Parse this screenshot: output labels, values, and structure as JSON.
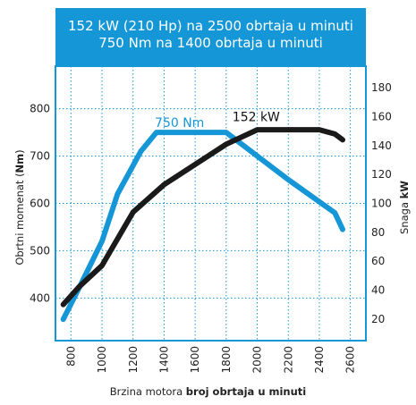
{
  "chart_data": {
    "type": "line",
    "title_line1": "152 kW (210 Hp) na 2500 obrtaja u minuti",
    "title_line2": "750 Nm na 1400 obrtaja u minuti",
    "xlabel_regular": "Brzina motora ",
    "xlabel_bold": "broj obrtaja u minuti",
    "ylabel_left_regular": "Obrtni momenat (",
    "ylabel_left_bold": "Nm",
    "ylabel_left_close": ")",
    "ylabel_right_regular": "Snaga ",
    "ylabel_right_bold": "kW",
    "x_ticks": [
      "800",
      "1000",
      "1200",
      "1400",
      "1600",
      "1800",
      "2000",
      "2200",
      "2400",
      "2600"
    ],
    "y_left_ticks": [
      "400",
      "500",
      "600",
      "700",
      "800"
    ],
    "y_right_ticks": [
      "20",
      "40",
      "60",
      "80",
      "100",
      "120",
      "140",
      "160",
      "180"
    ],
    "xlim": [
      700,
      2700
    ],
    "ylim_left": [
      310,
      890
    ],
    "ylim_right": [
      5,
      195
    ],
    "grid": true,
    "series": [
      {
        "name": "750 Nm",
        "axis": "left",
        "color": "#1596d6",
        "x": [
          750,
          850,
          1000,
          1100,
          1250,
          1350,
          1400,
          1800,
          2200,
          2500,
          2550
        ],
        "y": [
          355,
          420,
          520,
          620,
          710,
          750,
          750,
          750,
          650,
          580,
          545
        ]
      },
      {
        "name": "152 kW",
        "axis": "right",
        "color": "#1a1a1a",
        "x": [
          750,
          850,
          1000,
          1200,
          1400,
          1800,
          2000,
          2200,
          2400,
          2500,
          2550
        ],
        "y": [
          30,
          42,
          57,
          94,
          113,
          141,
          151,
          151,
          151,
          148,
          144
        ]
      }
    ]
  }
}
